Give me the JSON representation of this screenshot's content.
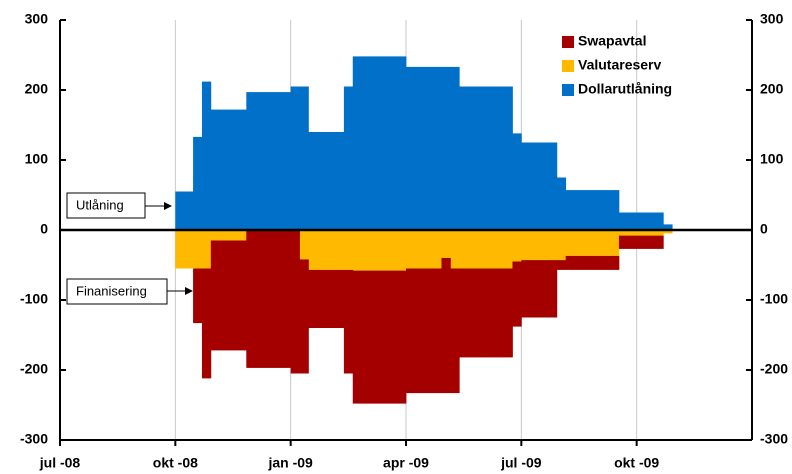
{
  "chart_data": {
    "type": "bar",
    "stacked": true,
    "categories": [
      "jul -08",
      null,
      null,
      null,
      null,
      null,
      null,
      null,
      null,
      null,
      null,
      null,
      null,
      "okt -08",
      null,
      null,
      null,
      null,
      null,
      null,
      null,
      null,
      null,
      null,
      null,
      null,
      "jan -09",
      null,
      null,
      null,
      null,
      null,
      null,
      null,
      null,
      null,
      null,
      null,
      null,
      "apr -09",
      null,
      null,
      null,
      null,
      null,
      null,
      null,
      null,
      null,
      null,
      null,
      null,
      "jul -09",
      null,
      null,
      null,
      null,
      null,
      null,
      null,
      null,
      null,
      null,
      null,
      null,
      "okt -09",
      null,
      null,
      null,
      null,
      null,
      null,
      null,
      null,
      null,
      null,
      null,
      null
    ],
    "series": [
      {
        "name": "Swapavtal",
        "color": "#a50000",
        "values": [
          0,
          0,
          0,
          0,
          0,
          0,
          0,
          0,
          0,
          0,
          0,
          0,
          0,
          0,
          0,
          -78,
          -157,
          -157,
          -157,
          -157,
          -157,
          -197,
          -197,
          -197,
          -197,
          -197,
          -205,
          -163,
          -83,
          -83,
          -83,
          -83,
          -148,
          -190,
          -190,
          -190,
          -190,
          -190,
          -190,
          -178,
          -178,
          -178,
          -178,
          -193,
          -178,
          -127,
          -127,
          -127,
          -127,
          -127,
          -127,
          -93,
          -82,
          -82,
          -82,
          -82,
          -14,
          -20,
          -20,
          -20,
          -20,
          -20,
          -20,
          -19,
          -19,
          -19,
          -19,
          -19,
          0,
          0,
          0,
          0,
          0,
          0,
          0,
          0,
          0,
          0
        ]
      },
      {
        "name": "Valutareserv",
        "color": "#ffba00",
        "values": [
          0,
          0,
          0,
          0,
          0,
          0,
          0,
          0,
          0,
          0,
          0,
          0,
          0,
          -55,
          -55,
          -55,
          -55,
          -15,
          -15,
          -15,
          -15,
          0,
          0,
          0,
          0,
          0,
          0,
          -42,
          -57,
          -57,
          -57,
          -57,
          -57,
          -58,
          -58,
          -58,
          -58,
          -58,
          -58,
          -55,
          -55,
          -55,
          -55,
          -40,
          -55,
          -55,
          -55,
          -55,
          -55,
          -55,
          -55,
          -45,
          -43,
          -43,
          -43,
          -43,
          -43,
          -37,
          -37,
          -37,
          -37,
          -37,
          -37,
          -8,
          -8,
          -8,
          -8,
          -8,
          -5,
          0,
          0,
          0,
          0,
          0,
          0,
          0,
          0,
          0
        ]
      },
      {
        "name": "Dollarutlåning",
        "color": "#0070c8",
        "values": [
          0,
          0,
          0,
          0,
          0,
          0,
          0,
          0,
          0,
          0,
          0,
          0,
          0,
          55,
          55,
          133,
          212,
          172,
          172,
          172,
          172,
          197,
          197,
          197,
          197,
          197,
          205,
          205,
          140,
          140,
          140,
          140,
          205,
          248,
          248,
          248,
          248,
          248,
          248,
          233,
          233,
          233,
          233,
          233,
          233,
          205,
          205,
          205,
          205,
          205,
          205,
          138,
          125,
          125,
          125,
          125,
          75,
          57,
          57,
          57,
          57,
          57,
          57,
          25,
          25,
          25,
          25,
          25,
          8,
          0,
          0,
          0,
          0,
          0,
          0,
          0,
          0,
          0
        ]
      }
    ],
    "ylim": [
      -300,
      300
    ],
    "yticks": [
      -300,
      -200,
      -100,
      0,
      100,
      200,
      300
    ],
    "y2lim": [
      -300,
      300
    ],
    "y2ticks": [
      -300,
      -200,
      -100,
      0,
      100,
      200,
      300
    ],
    "grid": false,
    "legend": "top-right",
    "annotations": [
      "Utlåning",
      "Finanisering"
    ]
  }
}
